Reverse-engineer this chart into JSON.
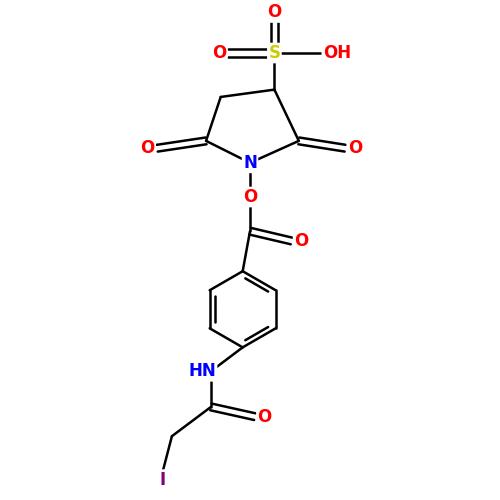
{
  "background_color": "#ffffff",
  "figsize": [
    5.0,
    5.0
  ],
  "dpi": 100,
  "atom_colors": {
    "C": "#000000",
    "N": "#0000ff",
    "O": "#ff0000",
    "S": "#cccc00",
    "I": "#800080",
    "H": "#000000"
  },
  "bond_color": "#000000",
  "bond_width": 1.8,
  "font_size": 11
}
